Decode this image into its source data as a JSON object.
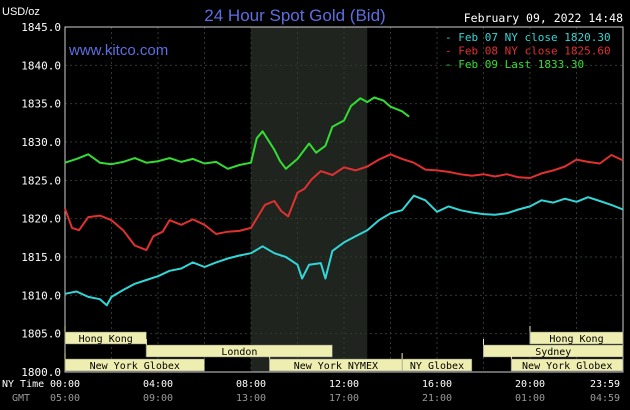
{
  "header": {
    "unit": "USD/oz",
    "title": "24 Hour Spot Gold (Bid)",
    "date": "February 09, 2022 14:48",
    "site": "www.kitco.com"
  },
  "axis_labels": {
    "ny_time": "NY Time",
    "gmt": "GMT"
  },
  "colors": {
    "background": "#000000",
    "plot": "#000000",
    "highlight": "#1f241f",
    "grid": "#2e3a2e",
    "axis_text": "#ffffff",
    "gmt_text": "#9a9a9a",
    "title": "#5b6fe0",
    "site": "#5b6fe0",
    "session_fill": "#eeeeb0",
    "session_text": "#000000"
  },
  "chart_data": {
    "type": "line",
    "title": "24 Hour Spot Gold (Bid)",
    "ylabel": "USD/oz",
    "ylim": [
      1800,
      1845
    ],
    "yticks": [
      "1845.0",
      "1840.0",
      "1835.0",
      "1830.0",
      "1825.0",
      "1820.0",
      "1815.0",
      "1810.0",
      "1805.0",
      "1800.0"
    ],
    "xlim": [
      0,
      24
    ],
    "xticks_ny": [
      "00:00",
      "04:00",
      "08:00",
      "12:00",
      "16:00",
      "20:00",
      "23:59"
    ],
    "xticks_gmt": [
      "05:00",
      "09:00",
      "13:00",
      "17:00",
      "21:00",
      "01:00",
      "04:59"
    ],
    "grid": true,
    "legend_position": "top-right",
    "legend": [
      {
        "label": "Feb 07 NY close 1820.30",
        "color": "#33d6d6"
      },
      {
        "label": "Feb 08 NY close 1825.60",
        "color": "#e03030"
      },
      {
        "label": "Feb 09 Last 1833.30",
        "color": "#33dd33"
      }
    ],
    "highlight_band": [
      8,
      13
    ],
    "series": [
      {
        "color": "#33d6d6",
        "x": [
          0,
          0.5,
          1,
          1.5,
          1.8,
          2,
          2.5,
          3,
          3.5,
          4,
          4.5,
          5,
          5.5,
          6,
          6.5,
          7,
          7.5,
          8,
          8.5,
          9,
          9.5,
          10,
          10.2,
          10.5,
          11,
          11.2,
          11.5,
          12,
          12.5,
          13,
          13.5,
          14,
          14.5,
          15,
          15.5,
          16,
          16.5,
          17,
          17.5,
          18,
          18.5,
          19,
          19.5,
          20,
          20.5,
          21,
          21.5,
          22,
          22.5,
          23,
          23.5,
          24
        ],
        "values": [
          1810.2,
          1810.5,
          1809.8,
          1809.5,
          1808.7,
          1809.8,
          1810.7,
          1811.5,
          1812,
          1812.5,
          1813.2,
          1813.5,
          1814.3,
          1813.7,
          1814.3,
          1814.8,
          1815.2,
          1815.5,
          1816.4,
          1815.5,
          1815,
          1814,
          1812.2,
          1814,
          1814.2,
          1812.2,
          1815.8,
          1816.9,
          1817.7,
          1818.5,
          1819.8,
          1820.7,
          1821.1,
          1823,
          1822.4,
          1820.9,
          1821.6,
          1821.1,
          1820.8,
          1820.6,
          1820.5,
          1820.7,
          1821.2,
          1821.6,
          1822.4,
          1822.1,
          1822.6,
          1822.2,
          1822.8,
          1822.3,
          1821.8,
          1821.2
        ]
      },
      {
        "color": "#e03030",
        "x": [
          0,
          0.3,
          0.6,
          1,
          1.5,
          2,
          2.5,
          3,
          3.5,
          3.8,
          4.2,
          4.5,
          5,
          5.5,
          6,
          6.5,
          7,
          7.5,
          8,
          8.3,
          8.6,
          9,
          9.3,
          9.6,
          10,
          10.3,
          10.6,
          11,
          11.5,
          12,
          12.5,
          13,
          13.5,
          14,
          14.5,
          15,
          15.5,
          16,
          16.5,
          17,
          17.5,
          18,
          18.5,
          19,
          19.5,
          20,
          20.5,
          21,
          21.5,
          22,
          22.5,
          23,
          23.5,
          24
        ],
        "values": [
          1821.3,
          1818.8,
          1818.5,
          1820.2,
          1820.4,
          1819.8,
          1818.5,
          1816.5,
          1815.9,
          1817.7,
          1818.3,
          1819.8,
          1819.2,
          1819.9,
          1819.2,
          1818,
          1818.3,
          1818.4,
          1818.8,
          1820.3,
          1821.8,
          1822.3,
          1821,
          1820.3,
          1823.4,
          1823.9,
          1825.1,
          1826.2,
          1825.7,
          1826.7,
          1826.3,
          1826.8,
          1827.7,
          1828.4,
          1827.8,
          1827.3,
          1826.4,
          1826.3,
          1826.1,
          1825.8,
          1825.6,
          1825.8,
          1825.5,
          1825.8,
          1825.4,
          1825.3,
          1825.9,
          1826.3,
          1826.8,
          1827.7,
          1827.4,
          1827.2,
          1828.3,
          1827.6
        ]
      },
      {
        "color": "#33dd33",
        "x": [
          0,
          0.5,
          1,
          1.5,
          2,
          2.5,
          3,
          3.5,
          4,
          4.5,
          5,
          5.5,
          6,
          6.5,
          7,
          7.5,
          8,
          8.25,
          8.5,
          9,
          9.25,
          9.5,
          10,
          10.5,
          10.8,
          11.2,
          11.5,
          12,
          12.3,
          12.7,
          13,
          13.3,
          13.7,
          14,
          14.5,
          14.8
        ],
        "values": [
          1827.3,
          1827.8,
          1828.4,
          1827.3,
          1827.1,
          1827.4,
          1827.9,
          1827.3,
          1827.5,
          1827.9,
          1827.4,
          1827.8,
          1827.2,
          1827.4,
          1826.5,
          1827,
          1827.3,
          1830.5,
          1831.4,
          1829,
          1827.5,
          1826.5,
          1827.8,
          1829.8,
          1828.6,
          1829.5,
          1832,
          1832.8,
          1834.7,
          1835.7,
          1835.2,
          1835.8,
          1835.4,
          1834.6,
          1834,
          1833.3
        ]
      }
    ]
  },
  "sessions": [
    {
      "label": "Hong Kong",
      "start": 0,
      "end": 3.5,
      "row": 0
    },
    {
      "label": "Hong Kong",
      "start": 20,
      "end": 24,
      "row": 0
    },
    {
      "label": "London",
      "start": 3.5,
      "end": 11.5,
      "row": 1
    },
    {
      "label": "Sydney",
      "start": 18,
      "end": 24,
      "row": 1
    },
    {
      "label": "New York Globex",
      "start": 0,
      "end": 6,
      "row": 2
    },
    {
      "label": "New York NYMEX",
      "start": 8.8,
      "end": 14.5,
      "row": 2
    },
    {
      "label": "NY Globex",
      "start": 14.5,
      "end": 17.5,
      "row": 2
    },
    {
      "label": "New York Globex",
      "start": 19.2,
      "end": 24,
      "row": 2
    }
  ]
}
